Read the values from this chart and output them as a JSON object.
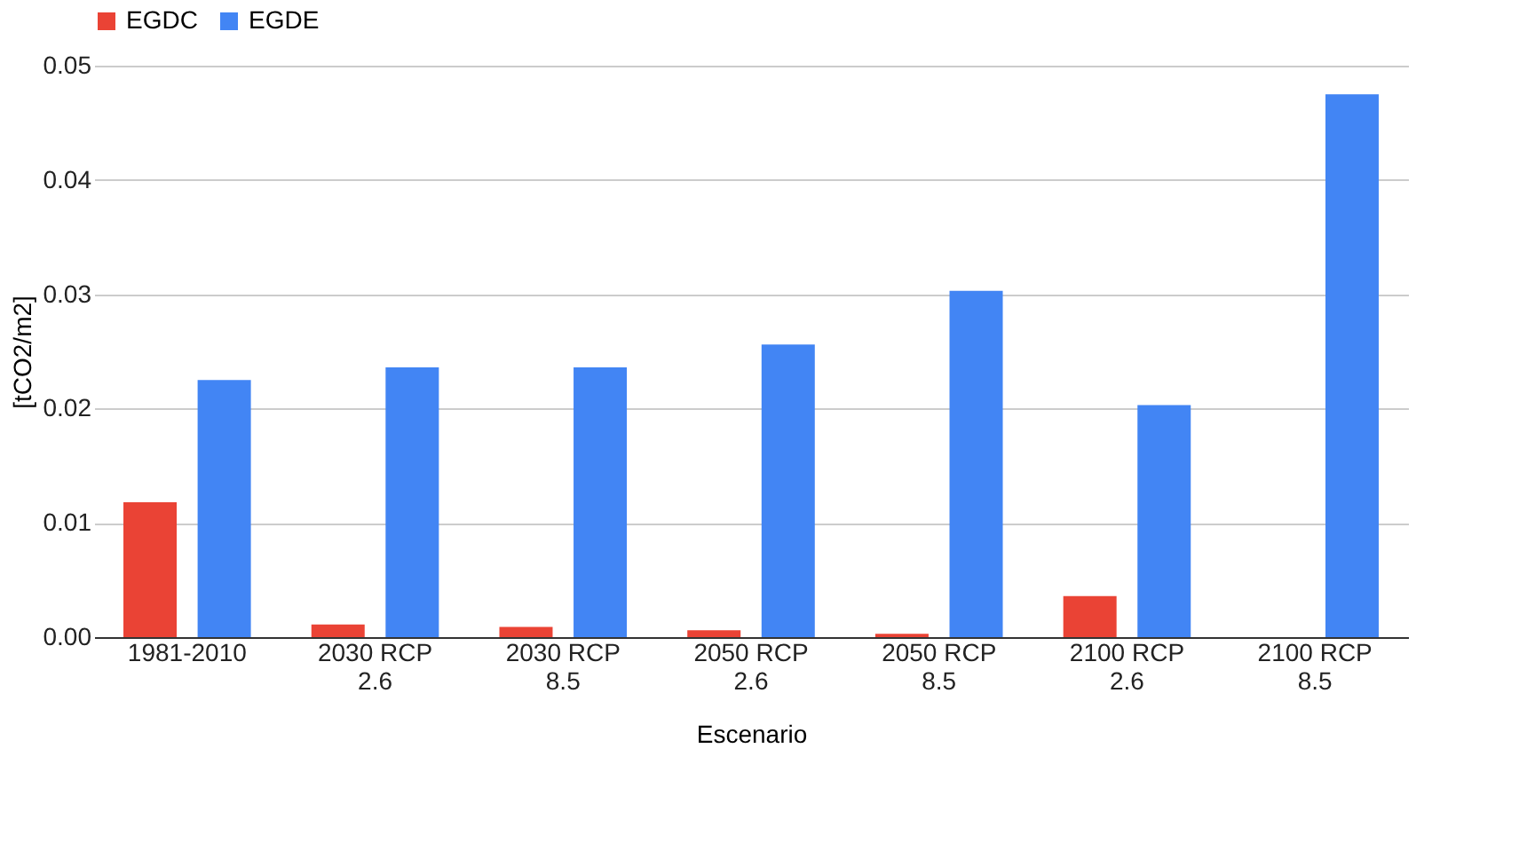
{
  "chart_data": {
    "type": "bar",
    "xlabel": "Escenario",
    "ylabel": "[tCO2/m2]",
    "categories": [
      "1981-2010",
      "2030 RCP 2.6",
      "2030 RCP 8.5",
      "2050 RCP 2.6",
      "2050 RCP 8.5",
      "2100 RCP 2.6",
      "2100 RCP 8.5"
    ],
    "series": [
      {
        "name": "EGDC",
        "color": "#ea4335",
        "values": [
          0.0118,
          0.0011,
          0.0009,
          0.0006,
          0.0003,
          0.0036,
          0
        ]
      },
      {
        "name": "EGDE",
        "color": "#4285f4",
        "values": [
          0.0225,
          0.0236,
          0.0236,
          0.0256,
          0.0303,
          0.0203,
          0.0475
        ]
      }
    ],
    "ylim": [
      0,
      0.05
    ],
    "yticks": [
      {
        "value": 0,
        "label": "0.00"
      },
      0.01,
      0.02,
      0.03,
      0.04,
      0.05
    ],
    "grid": "y",
    "legend": "top"
  }
}
